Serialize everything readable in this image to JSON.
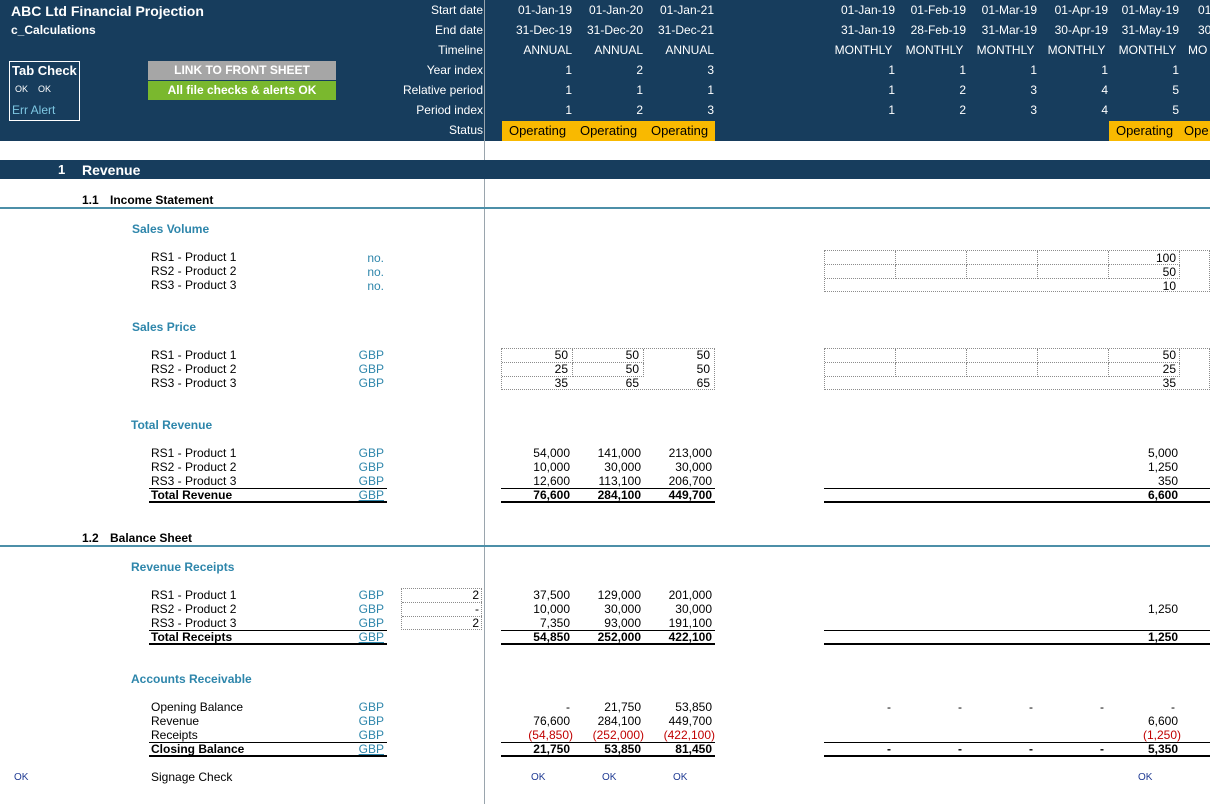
{
  "header": {
    "title": "ABC Ltd Financial Projection",
    "sheet": "c_Calculations",
    "labels": [
      "Start date",
      "End date",
      "Timeline",
      "Year index",
      "Relative period",
      "Period index",
      "Status"
    ],
    "tab_check": "Tab Check",
    "tab_ok1": "OK",
    "tab_ok2": "OK",
    "err_alert": "Err Alert",
    "link_front": "LINK TO FRONT SHEET",
    "file_checks": "All file checks & alerts OK"
  },
  "annual": {
    "start": [
      "01-Jan-19",
      "01-Jan-20",
      "01-Jan-21"
    ],
    "end": [
      "31-Dec-19",
      "31-Dec-20",
      "31-Dec-21"
    ],
    "timeline": [
      "ANNUAL",
      "ANNUAL",
      "ANNUAL"
    ],
    "year_index": [
      "1",
      "2",
      "3"
    ],
    "relative": [
      "1",
      "1",
      "1"
    ],
    "period_index": [
      "1",
      "2",
      "3"
    ],
    "status": [
      "Operating",
      "Operating",
      "Operating"
    ]
  },
  "monthly": {
    "start": [
      "01-Jan-19",
      "01-Feb-19",
      "01-Mar-19",
      "01-Apr-19",
      "01-May-19",
      "01"
    ],
    "end": [
      "31-Jan-19",
      "28-Feb-19",
      "31-Mar-19",
      "30-Apr-19",
      "31-May-19",
      "30"
    ],
    "timeline": [
      "MONTHLY",
      "MONTHLY",
      "MONTHLY",
      "MONTHLY",
      "MONTHLY",
      "MO"
    ],
    "year_index": [
      "1",
      "1",
      "1",
      "1",
      "1"
    ],
    "relative": [
      "1",
      "2",
      "3",
      "4",
      "5"
    ],
    "period_index": [
      "1",
      "2",
      "3",
      "4",
      "5"
    ],
    "status5": "Operating",
    "status6": "Ope"
  },
  "section": {
    "num": "1",
    "title": "Revenue"
  },
  "income": {
    "num": "1.1",
    "title": "Income Statement"
  },
  "balance": {
    "num": "1.2",
    "title": "Balance Sheet"
  },
  "sales_volume": {
    "title": "Sales Volume",
    "rows": [
      {
        "label": "RS1 - Product 1",
        "unit": "no.",
        "m5": "100"
      },
      {
        "label": "RS2 - Product 2",
        "unit": "no.",
        "m5": "50"
      },
      {
        "label": "RS3 - Product 3",
        "unit": "no.",
        "m5": "10"
      }
    ]
  },
  "sales_price": {
    "title": "Sales Price",
    "rows": [
      {
        "label": "RS1 - Product 1",
        "unit": "GBP",
        "a": [
          "50",
          "50",
          "50"
        ],
        "m5": "50"
      },
      {
        "label": "RS2 - Product 2",
        "unit": "GBP",
        "a": [
          "25",
          "50",
          "50"
        ],
        "m5": "25"
      },
      {
        "label": "RS3 - Product 3",
        "unit": "GBP",
        "a": [
          "35",
          "65",
          "65"
        ],
        "m5": "35"
      }
    ]
  },
  "total_revenue": {
    "title": "Total Revenue",
    "rows": [
      {
        "label": "RS1 - Product 1",
        "unit": "GBP",
        "a": [
          "54,000",
          "141,000",
          "213,000"
        ],
        "m5": "5,000"
      },
      {
        "label": "RS2 - Product 2",
        "unit": "GBP",
        "a": [
          "10,000",
          "30,000",
          "30,000"
        ],
        "m5": "1,250"
      },
      {
        "label": "RS3 - Product 3",
        "unit": "GBP",
        "a": [
          "12,600",
          "113,100",
          "206,700"
        ],
        "m5": "350"
      }
    ],
    "total": {
      "label": "Total Revenue",
      "unit": "GBP",
      "a": [
        "76,600",
        "284,100",
        "449,700"
      ],
      "m5": "6,600"
    }
  },
  "receipts": {
    "title": "Revenue Receipts",
    "rows": [
      {
        "label": "RS1 - Product 1",
        "unit": "GBP",
        "lag": "2",
        "a": [
          "37,500",
          "129,000",
          "201,000"
        ],
        "m5": ""
      },
      {
        "label": "RS2 - Product 2",
        "unit": "GBP",
        "lag": "-",
        "a": [
          "10,000",
          "30,000",
          "30,000"
        ],
        "m5": "1,250"
      },
      {
        "label": "RS3 - Product 3",
        "unit": "GBP",
        "lag": "2",
        "a": [
          "7,350",
          "93,000",
          "191,100"
        ],
        "m5": ""
      }
    ],
    "total": {
      "label": "Total Receipts",
      "unit": "GBP",
      "a": [
        "54,850",
        "252,000",
        "422,100"
      ],
      "m5": "1,250"
    }
  },
  "ar": {
    "title": "Accounts Receivable",
    "rows": [
      {
        "label": "Opening Balance",
        "unit": "GBP",
        "a": [
          "-",
          "21,750",
          "53,850"
        ],
        "m": [
          "-",
          "-",
          "-",
          "-",
          "-"
        ]
      },
      {
        "label": "Revenue",
        "unit": "GBP",
        "a": [
          "76,600",
          "284,100",
          "449,700"
        ],
        "m": [
          "",
          "",
          "",
          "",
          "6,600"
        ]
      },
      {
        "label": "Receipts",
        "unit": "GBP",
        "a": [
          "(54,850)",
          "(252,000)",
          "(422,100)"
        ],
        "m": [
          "",
          "",
          "",
          "",
          "(1,250)"
        ]
      }
    ],
    "total": {
      "label": "Closing Balance",
      "unit": "GBP",
      "a": [
        "21,750",
        "53,850",
        "81,450"
      ],
      "m": [
        "-",
        "-",
        "-",
        "-",
        "5,350"
      ]
    }
  },
  "check": {
    "left_ok": "OK",
    "label": "Signage Check",
    "a": [
      "OK",
      "OK",
      "OK"
    ],
    "m5": "OK"
  },
  "colors": {
    "header_bg": "#173d5d",
    "status": "#f9b900",
    "ok_green": "#7ab82e",
    "front_grey": "#a6a6a6",
    "accent": "#2e86ab",
    "negative": "#c00000"
  }
}
